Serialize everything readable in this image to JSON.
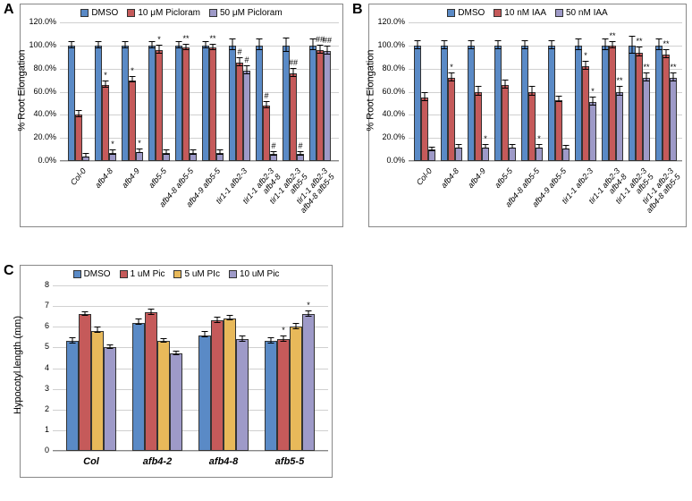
{
  "colors": {
    "blue": "#5a8ac6",
    "red": "#c55a5a",
    "purple": "#9e9ac8",
    "orange": "#e8b95a",
    "grid": "#d0d0d0",
    "border": "#888888"
  },
  "chartA": {
    "label": "A",
    "type": "bar",
    "ylabel": "% Root Elongation",
    "ylim": [
      0,
      120
    ],
    "ytick_step": 20,
    "ytick_format": "percent",
    "legend": [
      {
        "label": "DMSO",
        "color": "#5a8ac6"
      },
      {
        "label": "10 μM Picloram",
        "color": "#c55a5a"
      },
      {
        "label": "50 μM Picloram",
        "color": "#9e9ac8"
      }
    ],
    "categories": [
      "Col-0",
      "afb4-8",
      "afb4-9",
      "afb5-5",
      "afb4-8 afb5-5",
      "afb4-9 afb5-5",
      "tir1-1 afb2-3",
      "tir1-1 afb2-3\nafb4-8",
      "tir1-1 afb2-3\nafb5-5",
      "tir1-1 afb2-3\nafb4-8 afb5-5"
    ],
    "series": [
      {
        "values": [
          100,
          100,
          100,
          100,
          100,
          100,
          100,
          100,
          100,
          100
        ],
        "err": [
          3,
          3,
          3,
          3,
          3,
          3,
          5,
          5,
          6,
          5
        ],
        "sig": [
          "",
          "",
          "",
          "",
          "",
          "",
          "",
          "",
          "",
          ""
        ]
      },
      {
        "values": [
          40,
          66,
          70,
          96,
          98,
          98,
          85,
          48,
          76,
          96
        ],
        "err": [
          3,
          3,
          3,
          4,
          3,
          3,
          4,
          3,
          4,
          4
        ],
        "sig": [
          "",
          "*",
          "*",
          "*",
          "**",
          "**",
          "#",
          "#",
          "##",
          "##"
        ]
      },
      {
        "values": [
          4,
          7,
          8,
          7,
          7,
          7,
          78,
          6,
          6,
          95
        ],
        "err": [
          2,
          2,
          2,
          2,
          2,
          2,
          4,
          2,
          2,
          4
        ],
        "sig": [
          "",
          "*",
          "*",
          "",
          "",
          "",
          "#",
          "#",
          "#",
          "##"
        ]
      }
    ]
  },
  "chartB": {
    "label": "B",
    "type": "bar",
    "ylabel": "% Root Elongation",
    "ylim": [
      0,
      120
    ],
    "ytick_step": 20,
    "ytick_format": "percent",
    "legend": [
      {
        "label": "DMSO",
        "color": "#5a8ac6"
      },
      {
        "label": "10 nM IAA",
        "color": "#c55a5a"
      },
      {
        "label": "50 nM IAA",
        "color": "#9e9ac8"
      }
    ],
    "categories": [
      "Col-0",
      "afb4-8",
      "afb4-9",
      "afb5-5",
      "afb4-8 afb5-5",
      "afb4-9 afb5-5",
      "tir1-1 afb2-3",
      "tir1-1 afb2-3\nafb4-8",
      "tir1-1 afb2-3\nafb5-5",
      "tir1-1 afb2-3\nafb4-8 afb5-5"
    ],
    "series": [
      {
        "values": [
          100,
          100,
          100,
          100,
          100,
          100,
          100,
          100,
          100,
          100
        ],
        "err": [
          4,
          4,
          4,
          4,
          4,
          4,
          5,
          5,
          8,
          5
        ],
        "sig": [
          "",
          "",
          "",
          "",
          "",
          "",
          "",
          "",
          "",
          ""
        ]
      },
      {
        "values": [
          55,
          72,
          60,
          66,
          60,
          53,
          82,
          100,
          94,
          92
        ],
        "err": [
          4,
          4,
          4,
          4,
          4,
          3,
          4,
          3,
          4,
          4
        ],
        "sig": [
          "",
          "*",
          "",
          "",
          "",
          "",
          "*",
          "**",
          "**",
          "**"
        ]
      },
      {
        "values": [
          10,
          12,
          12,
          12,
          12,
          11,
          51,
          60,
          72,
          72
        ],
        "err": [
          2,
          2,
          2,
          2,
          2,
          2,
          4,
          4,
          4,
          4
        ],
        "sig": [
          "",
          "",
          "*",
          "",
          "*",
          "",
          "*",
          "**",
          "**",
          "**"
        ]
      }
    ]
  },
  "chartC": {
    "label": "C",
    "type": "bar",
    "ylabel": "Hypocotyl length (mm)",
    "ylim": [
      0,
      8
    ],
    "ytick_step": 1,
    "ytick_format": "number",
    "legend": [
      {
        "label": "DMSO",
        "color": "#5a8ac6"
      },
      {
        "label": "1 uM Pic",
        "color": "#c55a5a"
      },
      {
        "label": "5 uM PIc",
        "color": "#e8b95a"
      },
      {
        "label": "10 uM Pic",
        "color": "#9e9ac8"
      }
    ],
    "categories": [
      "Col",
      "afb4-2",
      "afb4-8",
      "afb5-5"
    ],
    "series": [
      {
        "values": [
          5.3,
          6.2,
          5.6,
          5.3
        ],
        "err": [
          0.15,
          0.15,
          0.15,
          0.15
        ],
        "sig": [
          "",
          "",
          "",
          ""
        ]
      },
      {
        "values": [
          6.6,
          6.7,
          6.3,
          5.4
        ],
        "err": [
          0.12,
          0.15,
          0.15,
          0.15
        ],
        "sig": [
          "",
          "",
          "",
          "*"
        ]
      },
      {
        "values": [
          5.8,
          5.3,
          6.4,
          6.0
        ],
        "err": [
          0.15,
          0.12,
          0.15,
          0.15
        ],
        "sig": [
          "",
          "",
          "",
          ""
        ]
      },
      {
        "values": [
          5.0,
          4.7,
          5.4,
          6.6
        ],
        "err": [
          0.12,
          0.12,
          0.15,
          0.15
        ],
        "sig": [
          "",
          "",
          "",
          "*"
        ]
      }
    ]
  }
}
